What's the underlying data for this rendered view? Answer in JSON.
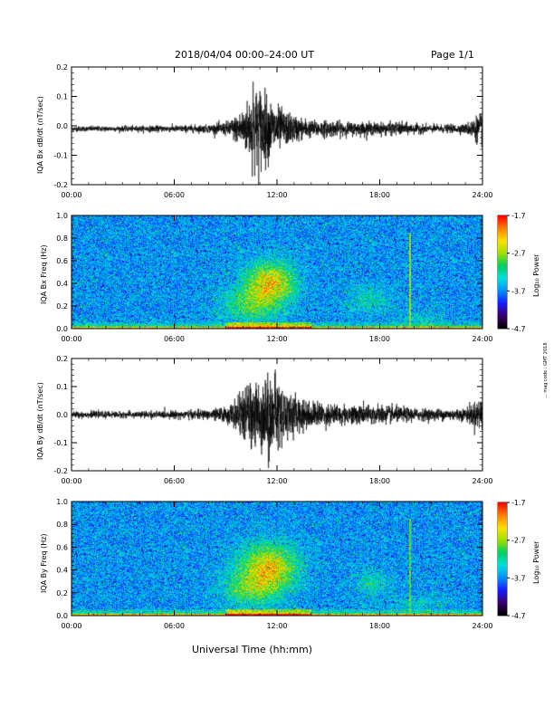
{
  "header": {
    "title": "2018/04/04  00:00–24:00 UT",
    "page": "Page 1/1"
  },
  "x_axis_title": "Universal Time (hh:mm)",
  "side_note": "... mag  code : GMT 2018",
  "colors": {
    "colormap": [
      "#000000",
      "#3a006e",
      "#1a1aff",
      "#0090ff",
      "#00e0e0",
      "#00d060",
      "#a0e000",
      "#ffe000",
      "#ff8000",
      "#ff0000"
    ],
    "trace": "#000000"
  },
  "chart_data": [
    {
      "type": "line",
      "ylabel": "IQA Bx dB/dt (nT/sec)",
      "xlim": [
        0,
        24
      ],
      "x_tick_labels": [
        "00:00",
        "06:00",
        "12:00",
        "18:00",
        "24:00"
      ],
      "x_ticks": [
        0,
        6,
        12,
        18,
        24
      ],
      "ylim": [
        -0.2,
        0.2
      ],
      "y_tick_labels": [
        "0.2",
        "0.1",
        "0.0",
        "-0.1",
        "-0.2"
      ],
      "y_ticks": [
        0.2,
        0.1,
        0.0,
        -0.1,
        -0.2
      ],
      "baseline": -0.01,
      "envelope": {
        "hours": [
          0,
          3,
          6,
          8,
          9,
          9.5,
          10,
          10.5,
          11,
          11.5,
          12,
          12.5,
          13,
          14,
          15,
          16,
          17,
          18,
          19,
          20,
          21,
          22,
          23,
          23.7,
          24
        ],
        "amplitude": [
          0.008,
          0.008,
          0.01,
          0.012,
          0.02,
          0.035,
          0.06,
          0.1,
          0.13,
          0.09,
          0.07,
          0.05,
          0.04,
          0.025,
          0.025,
          0.02,
          0.02,
          0.018,
          0.02,
          0.015,
          0.012,
          0.012,
          0.014,
          0.04,
          0.05
        ]
      },
      "peaks": [
        {
          "x": 10.6,
          "y": 0.15
        },
        {
          "x": 10.7,
          "y": -0.17
        }
      ]
    },
    {
      "type": "heatmap",
      "ylabel": "IQA Bx Freq (Hz)",
      "xlim": [
        0,
        24
      ],
      "x_tick_labels": [
        "00:00",
        "06:00",
        "12:00",
        "18:00",
        "24:00"
      ],
      "x_ticks": [
        0,
        6,
        12,
        18,
        24
      ],
      "ylim": [
        0,
        1.0
      ],
      "y_tick_labels": [
        "1.0",
        "0.8",
        "0.6",
        "0.4",
        "0.2",
        "0.0"
      ],
      "y_ticks": [
        1.0,
        0.8,
        0.6,
        0.4,
        0.2,
        0.0
      ],
      "colorbar": {
        "label": "Log₁₀ Power",
        "tick_labels": [
          "-1.7",
          "-2.7",
          "-3.7",
          "-4.7"
        ],
        "ticks": [
          -1.7,
          -2.7,
          -3.7,
          -4.7
        ],
        "range": [
          -4.7,
          -1.7
        ]
      },
      "background_level": -3.65,
      "hotspots": [
        {
          "x": 11.6,
          "y": 0.4,
          "sx": 0.7,
          "sy": 0.18,
          "v": 0.85
        },
        {
          "x": 10.4,
          "y": 0.2,
          "sx": 0.8,
          "sy": 0.15,
          "v": 0.6
        },
        {
          "x": 17.4,
          "y": 0.25,
          "sx": 0.6,
          "sy": 0.12,
          "v": 0.5
        },
        {
          "x": 20.6,
          "y": 0.08,
          "sx": 0.7,
          "sy": 0.08,
          "v": 0.45
        }
      ],
      "line_features": [
        {
          "x": 19.8,
          "v": 0.7
        }
      ]
    },
    {
      "type": "line",
      "ylabel": "IQA By dB/dt (nT/sec)",
      "xlim": [
        0,
        24
      ],
      "x_tick_labels": [
        "00:00",
        "06:00",
        "12:00",
        "18:00",
        "24:00"
      ],
      "x_ticks": [
        0,
        6,
        12,
        18,
        24
      ],
      "ylim": [
        -0.2,
        0.2
      ],
      "y_tick_labels": [
        "0.2",
        "0.1",
        "0.0",
        "-0.1",
        "-0.2"
      ],
      "y_ticks": [
        0.2,
        0.1,
        0.0,
        -0.1,
        -0.2
      ],
      "baseline": 0.0,
      "envelope": {
        "hours": [
          0,
          3,
          6,
          8,
          9,
          9.5,
          10,
          10.5,
          11,
          11.5,
          12,
          12.5,
          13,
          14,
          15,
          16,
          17,
          18,
          19,
          20,
          21,
          22,
          23,
          23.7,
          24
        ],
        "amplitude": [
          0.01,
          0.01,
          0.012,
          0.015,
          0.025,
          0.04,
          0.07,
          0.1,
          0.11,
          0.12,
          0.11,
          0.08,
          0.06,
          0.04,
          0.035,
          0.03,
          0.03,
          0.03,
          0.025,
          0.02,
          0.018,
          0.018,
          0.02,
          0.045,
          0.06
        ]
      },
      "peaks": [
        {
          "x": 11.9,
          "y": 0.16
        },
        {
          "x": 11.5,
          "y": -0.19
        }
      ]
    },
    {
      "type": "heatmap",
      "ylabel": "IQA By Freq (Hz)",
      "xlim": [
        0,
        24
      ],
      "x_tick_labels": [
        "00:00",
        "06:00",
        "12:00",
        "18:00",
        "24:00"
      ],
      "x_ticks": [
        0,
        6,
        12,
        18,
        24
      ],
      "ylim": [
        0,
        1.0
      ],
      "y_tick_labels": [
        "1.0",
        "0.8",
        "0.6",
        "0.4",
        "0.2",
        "0.0"
      ],
      "y_ticks": [
        1.0,
        0.8,
        0.6,
        0.4,
        0.2,
        0.0
      ],
      "colorbar": {
        "label": "Log₁₀ Power",
        "tick_labels": [
          "-1.7",
          "-2.7",
          "-3.7",
          "-4.7"
        ],
        "ticks": [
          -1.7,
          -2.7,
          -3.7,
          -4.7
        ],
        "range": [
          -4.7,
          -1.7
        ]
      },
      "background_level": -3.65,
      "hotspots": [
        {
          "x": 11.5,
          "y": 0.42,
          "sx": 0.8,
          "sy": 0.2,
          "v": 0.85
        },
        {
          "x": 10.4,
          "y": 0.22,
          "sx": 0.8,
          "sy": 0.15,
          "v": 0.6
        },
        {
          "x": 17.6,
          "y": 0.28,
          "sx": 0.5,
          "sy": 0.12,
          "v": 0.5
        },
        {
          "x": 20.4,
          "y": 0.1,
          "sx": 0.8,
          "sy": 0.08,
          "v": 0.45
        }
      ],
      "line_features": [
        {
          "x": 19.8,
          "v": 0.65
        }
      ]
    }
  ]
}
